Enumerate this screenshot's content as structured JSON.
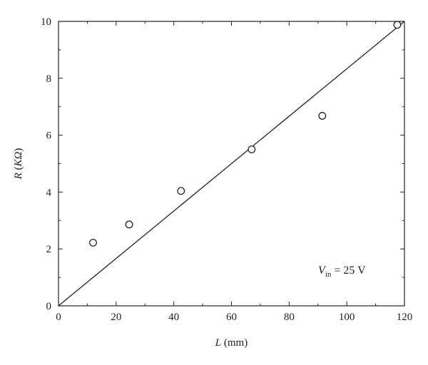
{
  "chart_data": {
    "type": "scatter",
    "xlabel": "L (mm)",
    "ylabel": "R (KΩ)",
    "xlim": [
      0,
      120
    ],
    "ylim": [
      0,
      10
    ],
    "x_ticks": [
      "0",
      "20",
      "40",
      "60",
      "80",
      "100",
      "120"
    ],
    "y_ticks": [
      "0",
      "2",
      "4",
      "6",
      "8",
      "10"
    ],
    "grid": false,
    "series": [
      {
        "kind": "markers",
        "marker": "open-circle",
        "x": [
          12,
          24.5,
          42.5,
          67,
          91.5,
          117.5
        ],
        "y": [
          2.22,
          2.86,
          4.04,
          5.5,
          6.68,
          9.88
        ]
      },
      {
        "kind": "line",
        "x": [
          0,
          120
        ],
        "y": [
          0,
          10
        ]
      }
    ],
    "annotation": {
      "text_main": "V",
      "text_sub": "in",
      "text_rest": " = 25 V"
    }
  }
}
